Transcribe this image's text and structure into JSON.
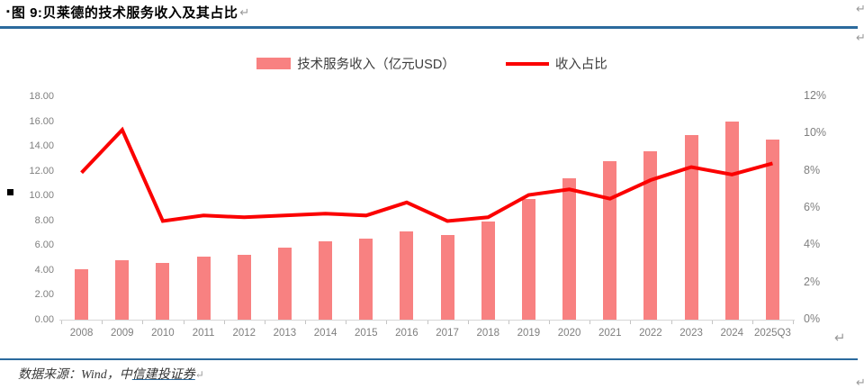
{
  "header": {
    "bullet": "▪",
    "title": "图 9:贝莱德的技术服务收入及其占比",
    "paragraph_mark": "↵"
  },
  "margin_marks": {
    "top_right_1": "↵",
    "top_right_2": "↵",
    "left_square": "▪",
    "chart_end": "↵",
    "bottom_right": "↵"
  },
  "legend": {
    "items": [
      {
        "label": "技术服务收入（亿元USD）",
        "swatch": "bar"
      },
      {
        "label": "收入占比",
        "swatch": "line"
      }
    ]
  },
  "chart_data": {
    "type": "bar",
    "subtype": "bar+line combo, dual axis",
    "categories": [
      "2008",
      "2009",
      "2010",
      "2011",
      "2012",
      "2013",
      "2014",
      "2015",
      "2016",
      "2017",
      "2018",
      "2019",
      "2020",
      "2021",
      "2022",
      "2023",
      "2024",
      "2025Q3"
    ],
    "series": [
      {
        "name": "技术服务收入（亿元USD）",
        "type": "bar",
        "axis": "left",
        "values": [
          4.1,
          4.8,
          4.6,
          5.1,
          5.2,
          5.8,
          6.3,
          6.5,
          7.1,
          6.8,
          7.9,
          9.7,
          11.4,
          12.8,
          13.6,
          14.9,
          16.0,
          14.5
        ]
      },
      {
        "name": "收入占比",
        "type": "line",
        "axis": "right",
        "values": [
          7.9,
          10.2,
          5.3,
          5.6,
          5.5,
          5.6,
          5.7,
          5.6,
          6.3,
          5.3,
          5.5,
          6.7,
          7.0,
          6.5,
          7.5,
          8.2,
          7.8,
          8.4
        ]
      }
    ],
    "left_axis": {
      "min": 0,
      "max": 18,
      "ticks": [
        "18.00",
        "16.00",
        "14.00",
        "12.00",
        "10.00",
        "8.00",
        "6.00",
        "4.00",
        "2.00",
        "0.00"
      ]
    },
    "right_axis": {
      "min": 0,
      "max": 12,
      "unit": "%",
      "ticks": [
        "12%",
        "10%",
        "8%",
        "6%",
        "4%",
        "2%",
        "0%"
      ]
    },
    "grid": false,
    "legend_position": "top"
  },
  "footer": {
    "prefix": "数据来源：Wind，中",
    "link": "信建投证券",
    "paragraph_mark": "↵"
  },
  "colors": {
    "bar": "#f88181",
    "line": "#fb0000",
    "rule": "#2b6a9d",
    "axis_text": "#7f7f7f"
  }
}
